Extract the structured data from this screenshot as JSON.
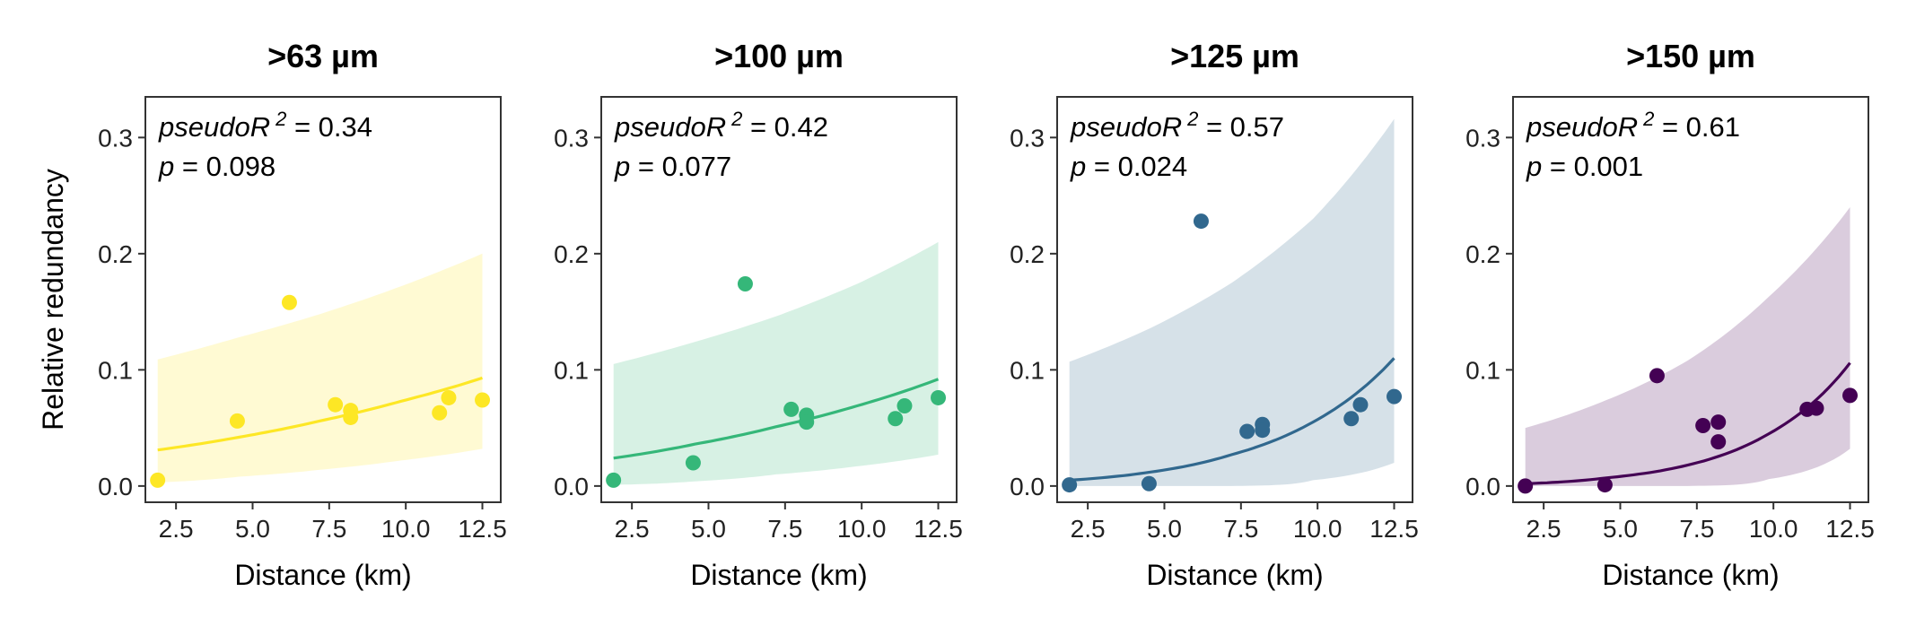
{
  "chart_data": [
    {
      "type": "scatter",
      "title": ">63 µm",
      "xlabel": "Distance (km)",
      "ylabel": "Relative redundancy",
      "xlim": [
        1.5,
        13.1
      ],
      "ylim": [
        -0.014,
        0.335
      ],
      "xticks": [
        "2.5",
        "5.0",
        "7.5",
        "10.0",
        "12.5"
      ],
      "yticks": [
        "0.0",
        "0.1",
        "0.2",
        "0.3"
      ],
      "color": "#FDE725",
      "annotation": {
        "r2_label": "pseudoR",
        "r2_sup": "2",
        "r2_value": " = 0.34",
        "p_label": "p",
        "p_value": " = 0.098"
      },
      "points": {
        "x": [
          1.9,
          4.5,
          6.2,
          7.7,
          8.2,
          8.2,
          11.1,
          11.4,
          12.5
        ],
        "y": [
          0.005,
          0.056,
          0.158,
          0.07,
          0.065,
          0.059,
          0.063,
          0.076,
          0.074
        ]
      },
      "fit": {
        "x": [
          1.9,
          4.55,
          7.2,
          9.85,
          12.5
        ],
        "y": [
          0.031,
          0.042,
          0.056,
          0.073,
          0.093
        ],
        "ci_lower": [
          0.003,
          0.008,
          0.014,
          0.022,
          0.032
        ],
        "ci_upper": [
          0.109,
          0.128,
          0.148,
          0.172,
          0.2
        ]
      }
    },
    {
      "type": "scatter",
      "title": ">100 µm",
      "xlabel": "Distance (km)",
      "ylabel": "",
      "xlim": [
        1.5,
        13.1
      ],
      "ylim": [
        -0.014,
        0.335
      ],
      "xticks": [
        "2.5",
        "5.0",
        "7.5",
        "10.0",
        "12.5"
      ],
      "yticks": [
        "0.0",
        "0.1",
        "0.2",
        "0.3"
      ],
      "color": "#35B779",
      "annotation": {
        "r2_label": "pseudoR",
        "r2_sup": "2",
        "r2_value": " = 0.42",
        "p_label": "p",
        "p_value": " = 0.077"
      },
      "points": {
        "x": [
          1.9,
          4.5,
          6.2,
          7.7,
          8.2,
          8.2,
          11.1,
          11.4,
          12.5
        ],
        "y": [
          0.005,
          0.02,
          0.174,
          0.066,
          0.061,
          0.055,
          0.058,
          0.069,
          0.076
        ]
      },
      "fit": {
        "x": [
          1.9,
          4.55,
          7.2,
          9.85,
          12.5
        ],
        "y": [
          0.024,
          0.036,
          0.051,
          0.069,
          0.092
        ],
        "ci_lower": [
          0.001,
          0.004,
          0.01,
          0.017,
          0.027
        ],
        "ci_upper": [
          0.105,
          0.124,
          0.146,
          0.174,
          0.21
        ]
      }
    },
    {
      "type": "scatter",
      "title": ">125 µm",
      "xlabel": "Distance (km)",
      "ylabel": "",
      "xlim": [
        1.5,
        13.1
      ],
      "ylim": [
        -0.014,
        0.335
      ],
      "xticks": [
        "2.5",
        "5.0",
        "7.5",
        "10.0",
        "12.5"
      ],
      "yticks": [
        "0.0",
        "0.1",
        "0.2",
        "0.3"
      ],
      "color": "#31688E",
      "annotation": {
        "r2_label": "pseudoR",
        "r2_sup": "2",
        "r2_value": " = 0.57",
        "p_label": "p",
        "p_value": " = 0.024"
      },
      "points": {
        "x": [
          1.9,
          4.5,
          6.2,
          7.7,
          8.2,
          8.2,
          11.1,
          11.4,
          12.5
        ],
        "y": [
          0.001,
          0.002,
          0.228,
          0.047,
          0.053,
          0.048,
          0.058,
          0.07,
          0.077
        ]
      },
      "fit": {
        "x": [
          1.9,
          4.55,
          7.2,
          9.85,
          12.5
        ],
        "y": [
          0.005,
          0.012,
          0.027,
          0.055,
          0.11
        ],
        "ci_lower": [
          0.0,
          0.0,
          0.0,
          0.005,
          0.02
        ],
        "ci_upper": [
          0.107,
          0.136,
          0.175,
          0.23,
          0.316
        ]
      }
    },
    {
      "type": "scatter",
      "title": ">150 µm",
      "xlabel": "Distance (km)",
      "ylabel": "",
      "xlim": [
        1.5,
        13.1
      ],
      "ylim": [
        -0.014,
        0.335
      ],
      "xticks": [
        "2.5",
        "5.0",
        "7.5",
        "10.0",
        "12.5"
      ],
      "yticks": [
        "0.0",
        "0.1",
        "0.2",
        "0.3"
      ],
      "color": "#440154",
      "annotation": {
        "r2_label": "pseudoR",
        "r2_sup": "2",
        "r2_value": " = 0.61",
        "p_label": "p",
        "p_value": " = 0.001"
      },
      "points": {
        "x": [
          1.9,
          4.5,
          6.2,
          7.7,
          8.2,
          8.2,
          11.1,
          11.4,
          12.5
        ],
        "y": [
          0.0,
          0.001,
          0.095,
          0.052,
          0.055,
          0.038,
          0.066,
          0.067,
          0.078
        ]
      },
      "fit": {
        "x": [
          1.9,
          4.55,
          7.2,
          9.85,
          12.5
        ],
        "y": [
          0.002,
          0.007,
          0.018,
          0.045,
          0.106
        ],
        "ci_lower": [
          0.0,
          0.0,
          0.0,
          0.006,
          0.032
        ],
        "ci_upper": [
          0.05,
          0.074,
          0.108,
          0.163,
          0.24
        ]
      }
    }
  ]
}
